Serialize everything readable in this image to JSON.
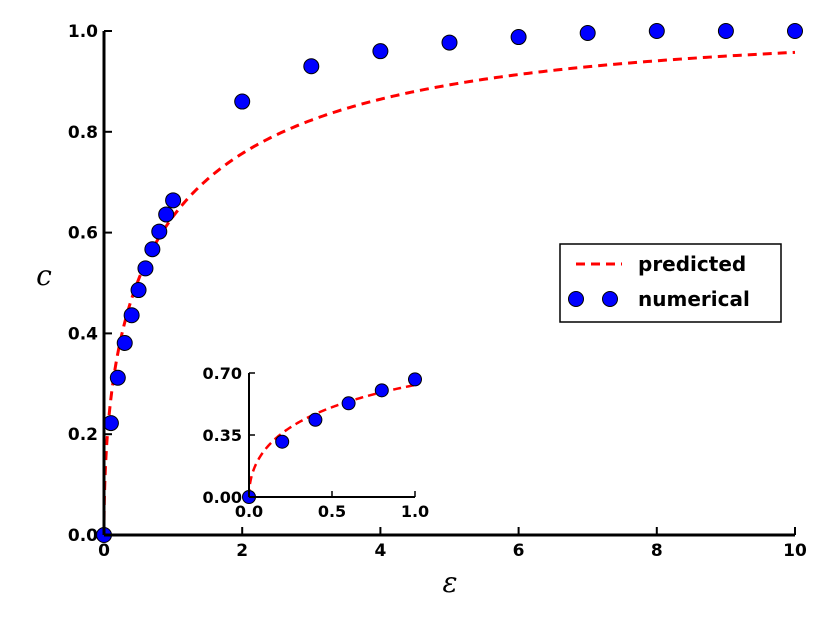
{
  "chart_data": [
    {
      "type": "line",
      "title": "",
      "xlabel": "ε",
      "ylabel": "c",
      "xlim": [
        0,
        10
      ],
      "ylim": [
        0,
        1.0
      ],
      "x_ticks": [
        0,
        2,
        4,
        6,
        8,
        10
      ],
      "x_tick_labels": [
        "0",
        "2",
        "4",
        "6",
        "8",
        "10"
      ],
      "y_ticks": [
        0,
        0.2,
        0.4,
        0.6,
        0.8,
        1.0
      ],
      "y_tick_labels": [
        "0.0",
        "0.2",
        "0.4",
        "0.6",
        "0.8",
        "1.0"
      ],
      "grid": false,
      "legend_position": "right",
      "series": [
        {
          "name": "predicted",
          "style": "dashed-line",
          "color": "#ff0000",
          "formula": "c = 1 - exp(-sqrt(epsilon))"
        },
        {
          "name": "numerical",
          "style": "markers",
          "color": "#0000ff",
          "x": [
            0,
            0.1,
            0.2,
            0.3,
            0.4,
            0.5,
            0.6,
            0.7,
            0.8,
            0.9,
            1.0,
            2,
            3,
            4,
            5,
            6,
            7,
            8,
            9,
            10
          ],
          "y": [
            0.0,
            0.222,
            0.312,
            0.381,
            0.436,
            0.486,
            0.529,
            0.567,
            0.602,
            0.636,
            0.664,
            0.86,
            0.93,
            0.96,
            0.977,
            0.988,
            0.996,
            1.0,
            1.0,
            1.0
          ]
        }
      ]
    },
    {
      "type": "line",
      "title": "",
      "xlabel": "",
      "ylabel": "",
      "xlim": [
        0,
        1.0
      ],
      "ylim": [
        0,
        0.7
      ],
      "x_ticks": [
        0,
        0.5,
        1.0
      ],
      "x_tick_labels": [
        "0.0",
        "0.5",
        "1.0"
      ],
      "y_ticks": [
        0,
        0.35,
        0.7
      ],
      "y_tick_labels": [
        "0.00",
        "0.35",
        "0.70"
      ],
      "grid": false,
      "series": [
        {
          "name": "predicted",
          "style": "dashed-line",
          "color": "#ff0000",
          "formula": "c = 1 - exp(-sqrt(epsilon))"
        },
        {
          "name": "numerical",
          "style": "markers",
          "color": "#0000ff",
          "x": [
            0.0,
            0.2,
            0.4,
            0.6,
            0.8,
            1.0
          ],
          "y": [
            0.0,
            0.312,
            0.436,
            0.529,
            0.602,
            0.664
          ]
        }
      ]
    }
  ]
}
